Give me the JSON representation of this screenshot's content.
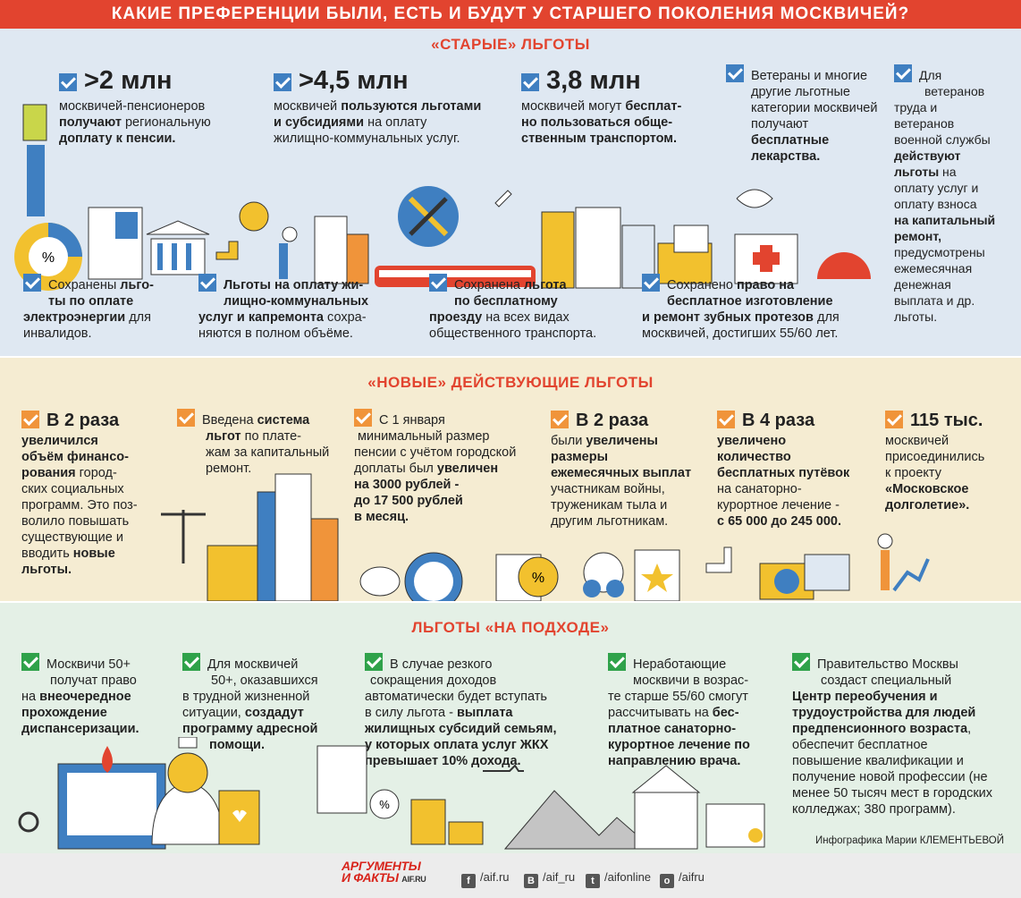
{
  "header": {
    "title": "КАКИЕ ПРЕФЕРЕНЦИИ БЫЛИ, ЕСТЬ И БУДУТ У СТАРШЕГО ПОКОЛЕНИЯ МОСКВИЧЕЙ?"
  },
  "old": {
    "title": "«СТАРЫЕ» ЛЬГОТЫ",
    "top": [
      {
        "big": ">2 млн",
        "l1": "москвичей-пенсионеров",
        "l2a": "получают",
        "l2b": " региональную",
        "l3": "доплату к пенсии."
      },
      {
        "big": ">4,5 млн",
        "l1a": "москвичей ",
        "l1b": "пользуются льготами",
        "l2a": "и субсидиями",
        "l2b": " на оплату",
        "l3": "жилищно-коммунальных услуг."
      },
      {
        "big": "3,8 млн",
        "l1a": "москвичей могут ",
        "l1b": "бесплат-",
        "l2": "но пользоваться обще-",
        "l3": "ственным транспортом."
      },
      {
        "l1": "Ветераны и многие",
        "l2": "другие льготные",
        "l3": "категории москвичей",
        "l4a": "получают ",
        "l4b": "бесплатные",
        "l5": "лекарства."
      },
      {
        "l1": "Для",
        "l2": "ветеранов",
        "l3": "труда и",
        "l4": "ветеранов",
        "l5": "военной службы",
        "l6": "действуют",
        "l7a": "льготы",
        "l7b": " на",
        "l8": "оплату услуг и",
        "l9": "оплату взноса",
        "l10": "на капитальный",
        "l11": "ремонт,",
        "l12": "предусмотрены",
        "l13": "ежемесячная",
        "l14": "денежная",
        "l15": "выплата и др.",
        "l16": "льготы."
      }
    ],
    "bottom": [
      {
        "l1a": "Сохранены ",
        "l1b": "льго-",
        "l2": "ты по оплате",
        "l3a": "электроэнергии",
        "l3b": " для",
        "l4": "инвалидов."
      },
      {
        "l1": "Льготы на оплату жи-",
        "l2": "лищно-коммунальных",
        "l3a": "услуг и капремонта",
        "l3b": " сохра-",
        "l4": "няются в полном объёме."
      },
      {
        "l1a": "Сохранена ",
        "l1b": "льгота",
        "l2": "по бесплатному",
        "l3a": "проезду",
        "l3b": " на всех видах",
        "l4": "общественного транспорта."
      },
      {
        "l1a": "Сохранено ",
        "l1b": "право на",
        "l2": "бесплатное изготовление",
        "l3a": "и ремонт зубных протезов",
        "l3b": " для",
        "l4": "москвичей, достигших 55/60 лет."
      }
    ]
  },
  "new": {
    "title": "«НОВЫЕ» ДЕЙСТВУЮЩИЕ ЛЬГОТЫ",
    "items": [
      {
        "mid": "В 2 раза",
        "l1": "увеличился",
        "l2": "объём финансо-",
        "l3a": "рования",
        "l3b": " город-",
        "l4": "ских социальных",
        "l5": "программ. Это поз-",
        "l6": "волило повышать",
        "l7": "существующие и",
        "l8a": "вводить ",
        "l8b": "новые",
        "l9": "льготы."
      },
      {
        "l1a": "Введена ",
        "l1b": "система",
        "l2a": "льгот",
        "l2b": " по плате-",
        "l3": "жам за капитальный",
        "l4": "ремонт."
      },
      {
        "l1": "С 1 января",
        "l2": "минимальный размер",
        "l3": "пенсии с учётом городской",
        "l4a": "доплаты был ",
        "l4b": "увеличен",
        "l5": "на 3000 рублей -",
        "l6": "до 17 500 рублей",
        "l7": "в месяц."
      },
      {
        "mid": "В 2 раза",
        "l1a": "были ",
        "l1b": "увеличены",
        "l2": "размеры",
        "l3": "ежемесячных выплат",
        "l4": "участникам войны,",
        "l5": "труженикам тыла и",
        "l6": "другим льготникам."
      },
      {
        "mid": "В 4 раза",
        "l1": "увеличено",
        "l2": "количество",
        "l3": "бесплатных путёвок",
        "l4": "на санаторно-",
        "l5": "курортное лечение -",
        "l6": "с 65 000 до 245 000."
      },
      {
        "mid": "115 тыс.",
        "l1": "москвичей",
        "l2": "присоединились",
        "l3": "к проекту",
        "l4": "«Московское",
        "l5": "долголетие»."
      }
    ]
  },
  "soon": {
    "title": "ЛЬГОТЫ «НА ПОДХОДЕ»",
    "items": [
      {
        "l1": "Москвичи 50+",
        "l2": "получат право",
        "l3a": "на ",
        "l3b": "внеочередное",
        "l4": "прохождение",
        "l5": "диспансеризации."
      },
      {
        "l1": "Для москвичей",
        "l2": "50+, оказавшихся",
        "l3": "в трудной жизненной",
        "l4a": "ситуации, ",
        "l4b": "создадут",
        "l5": "программу адресной",
        "l6": "помощи."
      },
      {
        "l1": "В случае резкого",
        "l2": "сокращения доходов",
        "l3": "автоматически будет вступать",
        "l4a": "в силу льгота - ",
        "l4b": "выплата",
        "l5": "жилищных субсидий семьям,",
        "l6": "у которых оплата услуг ЖКХ",
        "l7": "превышает 10% дохода."
      },
      {
        "l1": "Неработающие",
        "l2": "москвичи в возрас-",
        "l3": "те старше 55/60 смогут",
        "l4a": "рассчитывать на ",
        "l4b": "бес-",
        "l5": "платное санаторно-",
        "l6": "курортное лечение по",
        "l7": "направлению врача."
      },
      {
        "l1": "Правительство Москвы",
        "l2": "создаст специальный",
        "l3": "Центр переобучения и",
        "l4": "трудоустройства для людей",
        "l5a": "предпенсионного возраста",
        "l5b": ",",
        "l6": "обеспечит бесплатное",
        "l7": "повышение квалификации и",
        "l8": "получение новой профессии  (не",
        "l9": "менее 50 тысяч мест в городских",
        "l10": "колледжах; 380 программ)."
      }
    ]
  },
  "credit": "Инфографика Марии КЛЕМЕНТЬЕВОЙ",
  "footer": {
    "logo1": "АРГУМЕНТЫ",
    "logo2": "И ФАКТЫ",
    "logo3": "AIF.RU",
    "links": [
      {
        "icon": "f",
        "text": "/aif.ru"
      },
      {
        "icon": "В",
        "text": "/aif_ru"
      },
      {
        "icon": "t",
        "text": "/aifonline"
      },
      {
        "icon": "о",
        "text": "/aifru"
      }
    ]
  }
}
